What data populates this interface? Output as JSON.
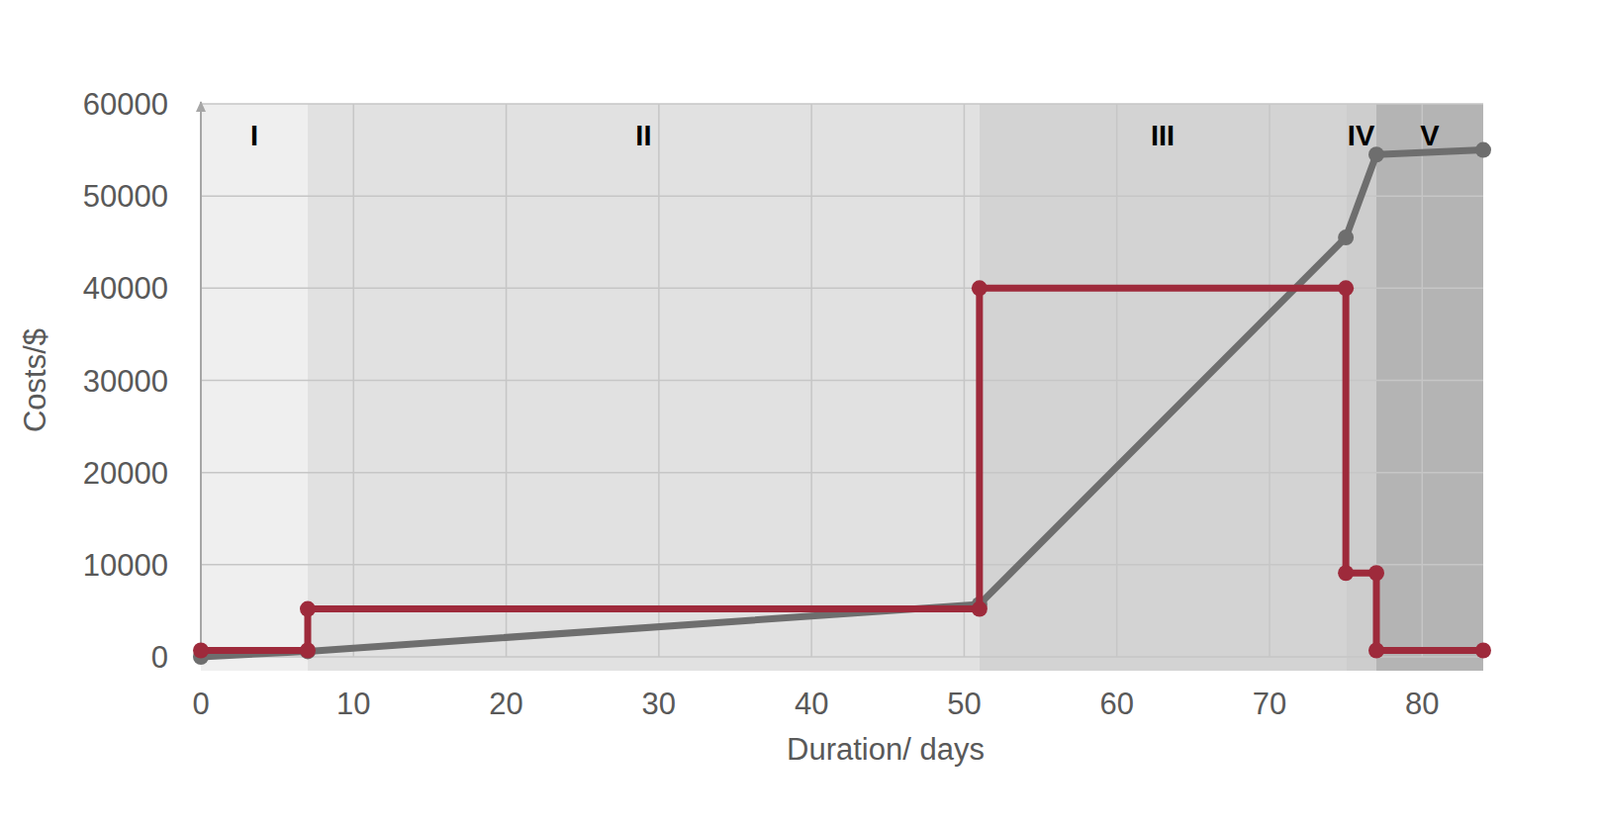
{
  "chart_data": {
    "type": "line",
    "x_label": "Duration/ days",
    "y_label": "Costs/$",
    "xlim": [
      0,
      84
    ],
    "xticks": [
      0,
      10,
      20,
      30,
      40,
      50,
      60,
      70,
      80
    ],
    "ylim": [
      0,
      60000
    ],
    "yticks": [
      0,
      10000,
      20000,
      30000,
      40000,
      50000,
      60000
    ],
    "grid": true,
    "marker": "circle",
    "annotations": [
      {
        "text": "I",
        "start": 0,
        "end": 7
      },
      {
        "text": "II",
        "start": 7,
        "end": 51
      },
      {
        "text": "III",
        "start": 51,
        "end": 75
      },
      {
        "text": "IV",
        "start": 75,
        "end": 77
      },
      {
        "text": "V",
        "start": 77,
        "end": 84
      }
    ],
    "series": [
      {
        "color": "#6e6e6e",
        "x": [
          0,
          7,
          51,
          75,
          77,
          84
        ],
        "values": [
          0,
          600,
          5700,
          45500,
          54500,
          55000
        ]
      },
      {
        "color": "#9e2a3b",
        "x": [
          0,
          7,
          7,
          51,
          51,
          75,
          75,
          77,
          77,
          84
        ],
        "values": [
          700,
          700,
          5200,
          5200,
          40000,
          40000,
          9100,
          9100,
          700,
          700
        ]
      }
    ]
  }
}
